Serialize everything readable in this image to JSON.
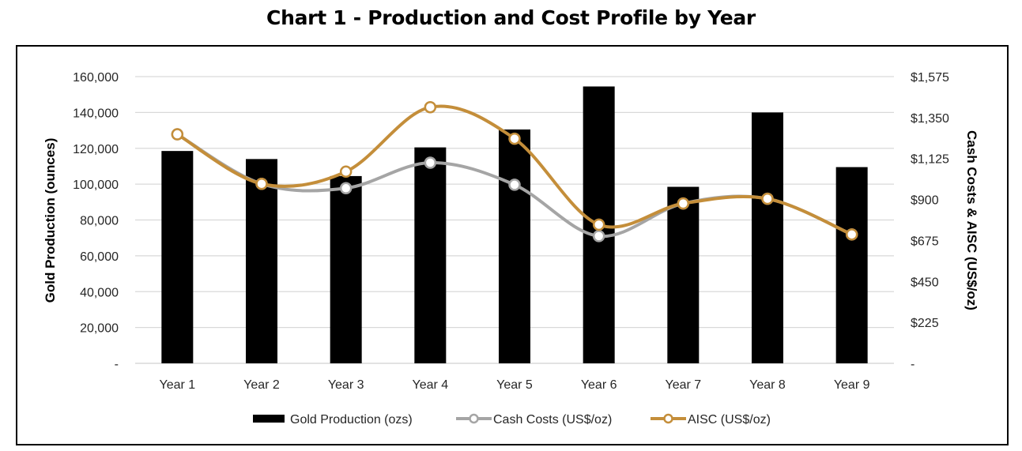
{
  "chart_data": {
    "type": "bar",
    "title": "Chart 1 - Production and Cost Profile by Year",
    "categories": [
      "Year 1",
      "Year 2",
      "Year 3",
      "Year 4",
      "Year 5",
      "Year 6",
      "Year 7",
      "Year 8",
      "Year 9"
    ],
    "series": [
      {
        "name": "Gold Production (ozs)",
        "type": "bar",
        "axis": "left",
        "color": "#000000",
        "values": [
          118500,
          114000,
          104500,
          120500,
          130500,
          154500,
          98500,
          140000,
          109500
        ]
      },
      {
        "name": "Cash Costs (US$/oz)",
        "type": "line",
        "axis": "right",
        "color": "#A5A5A5",
        "values": [
          1258,
          986,
          962,
          1102,
          981,
          699,
          878,
          904,
          708
        ]
      },
      {
        "name": "AISC (US$/oz)",
        "type": "line",
        "axis": "right",
        "color": "#C48E3A",
        "values": [
          1258,
          986,
          1053,
          1407,
          1234,
          762,
          878,
          904,
          708
        ]
      }
    ],
    "ylabel": "Gold Production (ounces)",
    "ylim": [
      0,
      160000
    ],
    "yticks": [
      "-",
      "20,000",
      "40,000",
      "60,000",
      "80,000",
      "100,000",
      "120,000",
      "140,000",
      "160,000"
    ],
    "y2label": "Cash Costs & AISC (US$/oz)",
    "y2lim": [
      0,
      1575
    ],
    "y2ticks": [
      "-",
      "$225",
      "$450",
      "$675",
      "$900",
      "$1,125",
      "$1,350",
      "$1,575"
    ],
    "xlabel": "",
    "grid": true,
    "legend": "bottom"
  }
}
